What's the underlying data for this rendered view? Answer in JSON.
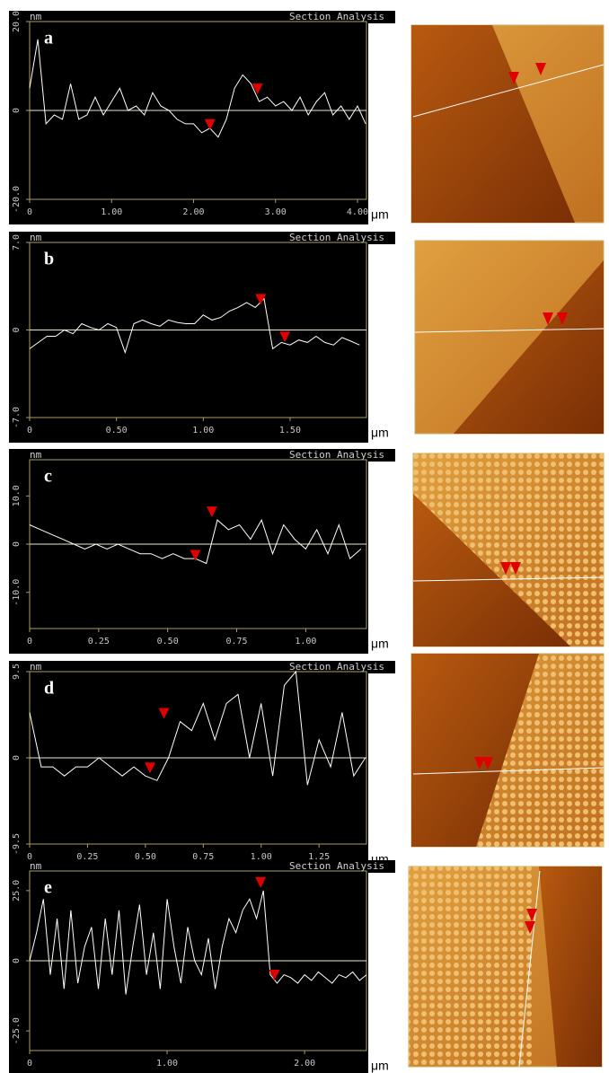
{
  "chart_data": [
    {
      "type": "line",
      "panel_label": "a",
      "title": "Section Analysis",
      "y_unit": "nm",
      "x_label": "μm",
      "color": "#ffffff",
      "x": [
        0,
        0.1,
        0.2,
        0.3,
        0.4,
        0.5,
        0.6,
        0.7,
        0.8,
        0.9,
        1.0,
        1.1,
        1.2,
        1.3,
        1.4,
        1.5,
        1.6,
        1.7,
        1.8,
        1.9,
        2.0,
        2.1,
        2.2,
        2.3,
        2.4,
        2.5,
        2.6,
        2.7,
        2.8,
        2.9,
        3.0,
        3.1,
        3.2,
        3.3,
        3.4,
        3.5,
        3.6,
        3.7,
        3.8,
        3.9,
        4.0,
        4.1
      ],
      "values": [
        5,
        16,
        -3,
        -1,
        -2,
        6,
        -2,
        -1,
        3,
        -1,
        2,
        5,
        0,
        1,
        -1,
        4,
        1,
        0,
        -2,
        -3,
        -3,
        -5,
        -4,
        -6,
        -2,
        5,
        8,
        6,
        2,
        3,
        1,
        2,
        0,
        3,
        -1,
        2,
        4,
        -1,
        1,
        -2,
        1,
        -3
      ],
      "markers": {
        "color": "#e00000",
        "x": [
          2.2,
          2.78
        ],
        "y": [
          -5,
          3
        ]
      },
      "xlim": [
        0,
        4.11
      ],
      "ylim": [
        -20,
        20
      ],
      "xticks": [
        0,
        {
          "value": 1,
          "label": "1.00"
        },
        {
          "value": 2,
          "label": "2.00"
        },
        {
          "value": 3,
          "label": "3.00"
        },
        {
          "value": 4,
          "label": "4.00"
        }
      ],
      "yticks": [
        {
          "value": -20,
          "label": "-20.0"
        },
        0,
        {
          "value": 20,
          "label": "20.0"
        }
      ]
    },
    {
      "type": "line",
      "panel_label": "b",
      "title": "Section Analysis",
      "y_unit": "nm",
      "x_label": "μm",
      "color": "#ffffff",
      "x": [
        0,
        0.05,
        0.1,
        0.15,
        0.2,
        0.25,
        0.3,
        0.35,
        0.4,
        0.45,
        0.5,
        0.55,
        0.6,
        0.65,
        0.7,
        0.75,
        0.8,
        0.85,
        0.9,
        0.95,
        1.0,
        1.05,
        1.1,
        1.15,
        1.2,
        1.25,
        1.3,
        1.35,
        1.4,
        1.45,
        1.5,
        1.55,
        1.6,
        1.65,
        1.7,
        1.75,
        1.8,
        1.85,
        1.9
      ],
      "values": [
        -1.5,
        -1,
        -0.5,
        -0.5,
        0,
        -0.3,
        0.5,
        0.2,
        0,
        0.5,
        0.2,
        -1.8,
        0.5,
        0.8,
        0.5,
        0.3,
        0.8,
        0.6,
        0.5,
        0.5,
        1.2,
        0.8,
        1,
        1.5,
        1.8,
        2.2,
        1.8,
        2.5,
        -1.5,
        -1,
        -1.2,
        -0.8,
        -1,
        -0.5,
        -1,
        -1.2,
        -0.6,
        -0.9,
        -1.2
      ],
      "markers": {
        "color": "#e00000",
        "x": [
          1.33,
          1.47
        ],
        "y": [
          1.8,
          -1.2
        ]
      },
      "xlim": [
        0,
        1.94
      ],
      "ylim": [
        -7,
        7
      ],
      "xticks": [
        0,
        {
          "value": 0.5,
          "label": "0.50"
        },
        {
          "value": 1,
          "label": "1.00"
        },
        {
          "value": 1.5,
          "label": "1.50"
        }
      ],
      "yticks": [
        {
          "value": -7,
          "label": "-7.0"
        },
        0,
        {
          "value": 7,
          "label": "7.0"
        }
      ]
    },
    {
      "type": "line",
      "panel_label": "c",
      "title": "Section Analysis",
      "y_unit": "nm",
      "x_label": "μm",
      "color": "#ffffff",
      "x": [
        0,
        0.04,
        0.08,
        0.12,
        0.16,
        0.2,
        0.24,
        0.28,
        0.32,
        0.36,
        0.4,
        0.44,
        0.48,
        0.52,
        0.56,
        0.6,
        0.64,
        0.68,
        0.72,
        0.76,
        0.8,
        0.84,
        0.88,
        0.92,
        0.96,
        1.0,
        1.04,
        1.08,
        1.12,
        1.16,
        1.2
      ],
      "values": [
        4,
        3,
        2,
        1,
        0,
        -1,
        0,
        -1,
        0,
        -1,
        -2,
        -2,
        -3,
        -2,
        -3,
        -3,
        -4,
        5,
        3,
        4,
        1,
        5,
        -2,
        4,
        1,
        -1,
        3,
        -2,
        4,
        -3,
        -1
      ],
      "markers": {
        "color": "#e00000",
        "x": [
          0.6,
          0.66
        ],
        "y": [
          -4,
          5
        ]
      },
      "xlim": [
        0,
        1.22
      ],
      "ylim": [
        -17.5,
        17.5
      ],
      "xticks": [
        0,
        {
          "value": 0.25,
          "label": "0.25"
        },
        {
          "value": 0.5,
          "label": "0.50"
        },
        {
          "value": 0.75,
          "label": "0.75"
        },
        {
          "value": 1,
          "label": "1.00"
        }
      ],
      "yticks": [
        {
          "value": -10,
          "label": "-10.0"
        },
        0,
        {
          "value": 10,
          "label": "10.0"
        }
      ]
    },
    {
      "type": "line",
      "panel_label": "d",
      "title": "Section Analysis",
      "y_unit": "nm",
      "x_label": "μm",
      "color": "#ffffff",
      "x": [
        0,
        0.05,
        0.1,
        0.15,
        0.2,
        0.25,
        0.3,
        0.35,
        0.4,
        0.45,
        0.5,
        0.55,
        0.6,
        0.65,
        0.7,
        0.75,
        0.8,
        0.85,
        0.9,
        0.95,
        1.0,
        1.05,
        1.1,
        1.15,
        1.2,
        1.25,
        1.3,
        1.35,
        1.4,
        1.45
      ],
      "values": [
        5,
        -1,
        -1,
        -2,
        -1,
        -1,
        0,
        -1,
        -2,
        -1,
        -2,
        -2.5,
        0,
        4,
        3,
        6,
        2,
        6,
        7,
        0,
        6,
        -2,
        8,
        9.5,
        -3,
        2,
        -1,
        5,
        -2,
        0
      ],
      "markers": {
        "color": "#e00000",
        "x": [
          0.52,
          0.58
        ],
        "y": [
          -2,
          4
        ]
      },
      "xlim": [
        0,
        1.455
      ],
      "ylim": [
        -9.5,
        9.5
      ],
      "xticks": [
        0,
        {
          "value": 0.25,
          "label": "0.25"
        },
        {
          "value": 0.5,
          "label": "0.50"
        },
        {
          "value": 0.75,
          "label": "0.75"
        },
        {
          "value": 1,
          "label": "1.00"
        },
        {
          "value": 1.25,
          "label": "1.25"
        }
      ],
      "yticks": [
        -9.5,
        0,
        9.5
      ]
    },
    {
      "type": "line",
      "panel_label": "e",
      "title": "Section Analysis",
      "y_unit": "nm",
      "x_label": "μm",
      "color": "#ffffff",
      "x": [
        0,
        0.05,
        0.1,
        0.15,
        0.2,
        0.25,
        0.3,
        0.35,
        0.4,
        0.45,
        0.5,
        0.55,
        0.6,
        0.65,
        0.7,
        0.75,
        0.8,
        0.85,
        0.9,
        0.95,
        1.0,
        1.05,
        1.1,
        1.15,
        1.2,
        1.25,
        1.3,
        1.35,
        1.4,
        1.45,
        1.5,
        1.55,
        1.6,
        1.65,
        1.7,
        1.75,
        1.8,
        1.85,
        1.9,
        1.95,
        2.0,
        2.05,
        2.1,
        2.15,
        2.2,
        2.25,
        2.3,
        2.35,
        2.4,
        2.45
      ],
      "values": [
        0,
        10,
        22,
        -5,
        15,
        -10,
        18,
        -8,
        5,
        12,
        -10,
        15,
        -5,
        18,
        -12,
        5,
        20,
        -5,
        10,
        -10,
        22,
        5,
        -8,
        12,
        0,
        -5,
        8,
        -10,
        5,
        15,
        10,
        18,
        22,
        15,
        25,
        -5,
        -8,
        -5,
        -6,
        -8,
        -5,
        -7,
        -4,
        -6,
        -8,
        -5,
        -6,
        -4,
        -7,
        -5
      ],
      "markers": {
        "color": "#e00000",
        "x": [
          1.68,
          1.78
        ],
        "y": [
          25,
          -8
        ]
      },
      "xlim": [
        0,
        2.45
      ],
      "ylim": [
        -32,
        32
      ],
      "xticks": [
        0,
        {
          "value": 1,
          "label": "1.00"
        },
        {
          "value": 2,
          "label": "2.00"
        }
      ],
      "yticks": [
        {
          "value": -25,
          "label": "-25.0"
        },
        0,
        {
          "value": 25,
          "label": "25.0"
        }
      ]
    }
  ]
}
